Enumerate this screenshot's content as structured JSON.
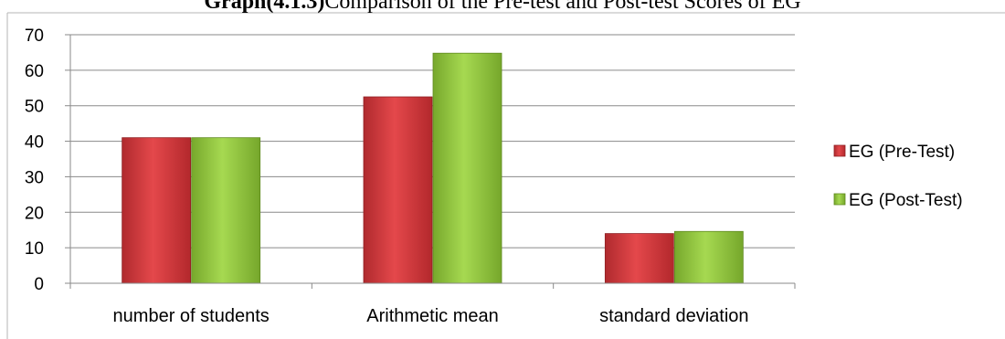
{
  "chart_data": {
    "type": "bar",
    "title_bold": "Graph(4.1.3)",
    "title_rest": "Comparison of the Pre-test and Post-test Scores of EG",
    "categories": [
      "number of students",
      "Arithmetic mean",
      "standard deviation"
    ],
    "series": [
      {
        "name": "EG (Pre-Test)",
        "values": [
          41,
          52.5,
          14
        ],
        "color": "#d9373b"
      },
      {
        "name": "EG (Post-Test)",
        "values": [
          41,
          64.8,
          14.6
        ],
        "color": "#8cc23a"
      }
    ],
    "ylim": [
      0,
      70
    ],
    "yticks": [
      0,
      10,
      20,
      30,
      40,
      50,
      60,
      70
    ],
    "grid": true,
    "legend_position": "right"
  }
}
